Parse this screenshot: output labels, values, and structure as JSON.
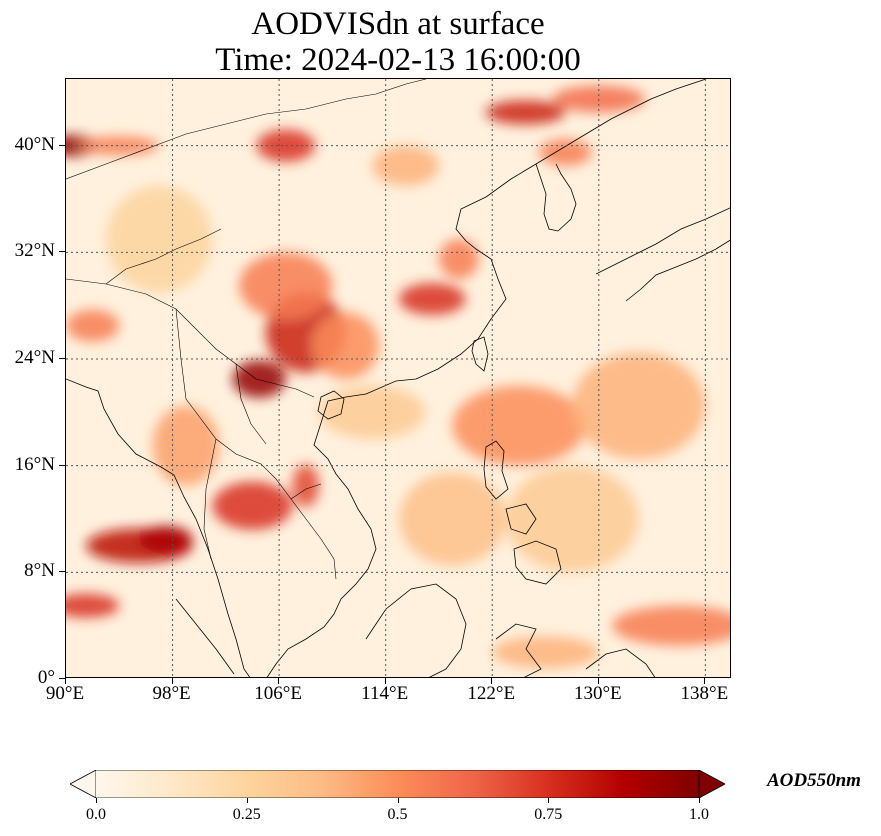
{
  "title": {
    "line1": "AODVISdn at surface",
    "line2": "Time: 2024-02-13 16:00:00"
  },
  "map": {
    "projection": "PlateCarree",
    "lon_range": [
      90,
      140
    ],
    "lat_range": [
      0,
      45
    ],
    "gridlines": true,
    "gridline_style": "dotted",
    "lat_ticks": [
      {
        "value": 0,
        "label": "0°"
      },
      {
        "value": 8,
        "label": "8°N"
      },
      {
        "value": 16,
        "label": "16°N"
      },
      {
        "value": 24,
        "label": "24°N"
      },
      {
        "value": 32,
        "label": "32°N"
      },
      {
        "value": 40,
        "label": "40°N"
      }
    ],
    "lon_ticks": [
      {
        "value": 90,
        "label": "90°E"
      },
      {
        "value": 98,
        "label": "98°E"
      },
      {
        "value": 106,
        "label": "106°E"
      },
      {
        "value": 114,
        "label": "114°E"
      },
      {
        "value": 122,
        "label": "122°E"
      },
      {
        "value": 130,
        "label": "130°E"
      },
      {
        "value": 138,
        "label": "138°E"
      }
    ],
    "field": "AOD550nm",
    "colormap": "OrRd",
    "hotspots": [
      {
        "lon": 104.5,
        "lat": 22.5,
        "aod": 0.95,
        "rx": 2.0,
        "ry": 1.4
      },
      {
        "lon": 108.0,
        "lat": 26.0,
        "aod": 0.8,
        "rx": 3.0,
        "ry": 3.0
      },
      {
        "lon": 106.5,
        "lat": 29.5,
        "aod": 0.55,
        "rx": 3.5,
        "ry": 2.5
      },
      {
        "lon": 111.0,
        "lat": 25.0,
        "aod": 0.5,
        "rx": 2.5,
        "ry": 2.5
      },
      {
        "lon": 117.5,
        "lat": 28.5,
        "aod": 0.75,
        "rx": 2.5,
        "ry": 1.2
      },
      {
        "lon": 119.5,
        "lat": 31.5,
        "aod": 0.55,
        "rx": 1.5,
        "ry": 1.5
      },
      {
        "lon": 90.5,
        "lat": 40.0,
        "aod": 0.95,
        "rx": 1.8,
        "ry": 0.8
      },
      {
        "lon": 94.0,
        "lat": 40.0,
        "aod": 0.55,
        "rx": 3.0,
        "ry": 0.7
      },
      {
        "lon": 106.5,
        "lat": 40.0,
        "aod": 0.75,
        "rx": 2.2,
        "ry": 1.2
      },
      {
        "lon": 124.5,
        "lat": 42.5,
        "aod": 0.8,
        "rx": 3.0,
        "ry": 0.9
      },
      {
        "lon": 130.0,
        "lat": 43.5,
        "aod": 0.6,
        "rx": 3.5,
        "ry": 1.0
      },
      {
        "lon": 127.5,
        "lat": 39.5,
        "aod": 0.55,
        "rx": 2.0,
        "ry": 1.0
      },
      {
        "lon": 115.5,
        "lat": 38.5,
        "aod": 0.4,
        "rx": 2.5,
        "ry": 1.5
      },
      {
        "lon": 95.5,
        "lat": 10.0,
        "aod": 0.85,
        "rx": 4.0,
        "ry": 1.3
      },
      {
        "lon": 97.5,
        "lat": 10.5,
        "aod": 0.9,
        "rx": 2.0,
        "ry": 1.0
      },
      {
        "lon": 91.5,
        "lat": 5.5,
        "aod": 0.75,
        "rx": 2.5,
        "ry": 0.9
      },
      {
        "lon": 104.0,
        "lat": 13.0,
        "aod": 0.75,
        "rx": 3.0,
        "ry": 1.8
      },
      {
        "lon": 108.0,
        "lat": 14.5,
        "aod": 0.7,
        "rx": 1.0,
        "ry": 1.6
      },
      {
        "lon": 99.0,
        "lat": 17.5,
        "aod": 0.45,
        "rx": 2.5,
        "ry": 3.0
      },
      {
        "lon": 92.0,
        "lat": 26.5,
        "aod": 0.55,
        "rx": 2.0,
        "ry": 1.2
      },
      {
        "lon": 124.0,
        "lat": 19.0,
        "aod": 0.5,
        "rx": 5.0,
        "ry": 3.0
      },
      {
        "lon": 133.0,
        "lat": 20.5,
        "aod": 0.4,
        "rx": 5.0,
        "ry": 4.0
      },
      {
        "lon": 136.0,
        "lat": 4.0,
        "aod": 0.55,
        "rx": 5.0,
        "ry": 1.5
      },
      {
        "lon": 126.0,
        "lat": 2.0,
        "aod": 0.4,
        "rx": 4.0,
        "ry": 1.2
      },
      {
        "lon": 119.0,
        "lat": 12.0,
        "aod": 0.35,
        "rx": 4.0,
        "ry": 3.5
      },
      {
        "lon": 128.0,
        "lat": 12.0,
        "aod": 0.3,
        "rx": 5.0,
        "ry": 4.0
      },
      {
        "lon": 97.0,
        "lat": 33.0,
        "aod": 0.25,
        "rx": 4.0,
        "ry": 4.0
      },
      {
        "lon": 113.0,
        "lat": 20.0,
        "aod": 0.3,
        "rx": 4.0,
        "ry": 2.0
      }
    ]
  },
  "colorbar": {
    "label": "AOD550nm",
    "vmin": 0.0,
    "vmax": 1.0,
    "extend": "both",
    "ticks": [
      {
        "value": 0.0,
        "label": "0.0"
      },
      {
        "value": 0.25,
        "label": "0.25"
      },
      {
        "value": 0.5,
        "label": "0.5"
      },
      {
        "value": 0.75,
        "label": "0.75"
      },
      {
        "value": 1.0,
        "label": "1.0"
      }
    ],
    "colors": [
      "#fff7ec",
      "#fee8c8",
      "#fdd49e",
      "#fdbb84",
      "#fc8d59",
      "#ef6548",
      "#d7301f",
      "#b30000",
      "#7f0000"
    ]
  }
}
